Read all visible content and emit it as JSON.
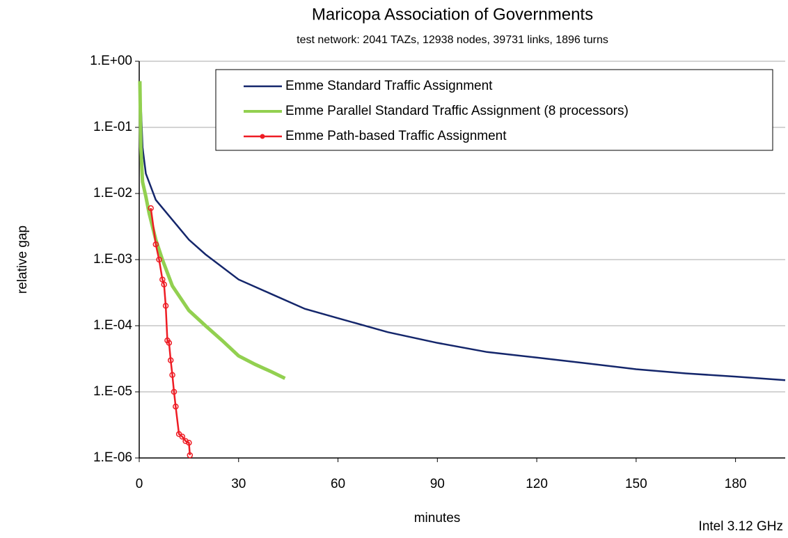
{
  "chart_data": {
    "type": "line",
    "title": "Maricopa Association of Governments",
    "subtitle": "test network:  2041 TAZs, 12938 nodes, 39731 links, 1896 turns",
    "x_label": "minutes",
    "y_label": "relative gap",
    "annotation": "Intel 3.12 GHz",
    "log_y": true,
    "grid": true,
    "legend": "top-right",
    "xlim": [
      0,
      195
    ],
    "xticks": [
      0,
      30,
      60,
      90,
      120,
      150,
      180
    ],
    "ylim": [
      1e-06,
      1
    ],
    "yticks": [
      {
        "value": 1,
        "label": "1.E+00"
      },
      {
        "value": 0.1,
        "label": "1.E-01"
      },
      {
        "value": 0.01,
        "label": "1.E-02"
      },
      {
        "value": 0.001,
        "label": "1.E-03"
      },
      {
        "value": 0.0001,
        "label": "1.E-04"
      },
      {
        "value": 1e-05,
        "label": "1.E-05"
      },
      {
        "value": 1e-06,
        "label": "1.E-06"
      }
    ],
    "series": [
      {
        "name": "Emme Standard Traffic Assignment",
        "color": "#14266b",
        "markers": false,
        "x": [
          0.3,
          1,
          2,
          5,
          10,
          15,
          20,
          30,
          40,
          50,
          60,
          75,
          90,
          105,
          120,
          135,
          150,
          165,
          180,
          195
        ],
        "values": [
          0.4,
          0.05,
          0.02,
          0.008,
          0.004,
          0.002,
          0.0012,
          0.0005,
          0.0003,
          0.00018,
          0.00013,
          8e-05,
          5.5e-05,
          4e-05,
          3.3e-05,
          2.7e-05,
          2.2e-05,
          1.9e-05,
          1.7e-05,
          1.5e-05
        ]
      },
      {
        "name": "Emme Parallel Standard Traffic Assignment (8 processors)",
        "color": "#92d050",
        "markers": false,
        "x": [
          0.2,
          0.5,
          1,
          2,
          3,
          5,
          7,
          10,
          15,
          20,
          25,
          30,
          35,
          40,
          44
        ],
        "values": [
          0.5,
          0.05,
          0.015,
          0.009,
          0.005,
          0.002,
          0.001,
          0.0004,
          0.00017,
          0.0001,
          6e-05,
          3.5e-05,
          2.6e-05,
          2e-05,
          1.6e-05
        ]
      },
      {
        "name": "Emme Path-based Traffic Assignment",
        "color": "#ee1c24",
        "markers": true,
        "x": [
          3.5,
          5,
          6,
          7,
          7.5,
          8,
          8.5,
          9,
          9.5,
          10,
          10.5,
          11,
          12,
          13,
          14,
          15,
          15.3
        ],
        "values": [
          0.006,
          0.0017,
          0.001,
          0.0005,
          0.00042,
          0.0002,
          6e-05,
          5.5e-05,
          3e-05,
          1.8e-05,
          1e-05,
          6e-06,
          2.3e-06,
          2.1e-06,
          1.8e-06,
          1.7e-06,
          1.1e-06
        ]
      }
    ]
  }
}
